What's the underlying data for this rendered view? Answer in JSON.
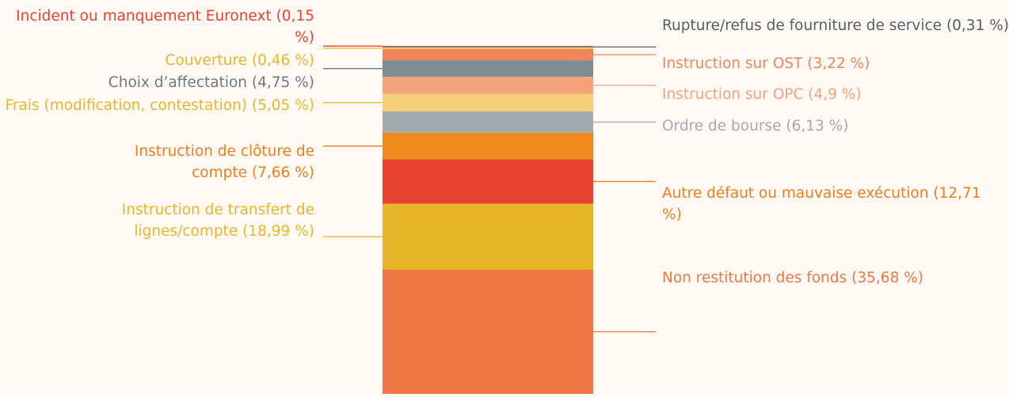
{
  "chart_data": {
    "type": "stacked-bar",
    "series": [
      {
        "name": "Incident ou manquement Euronext",
        "color": "#c9503f",
        "label_color": "#e8432e",
        "values": [
          0.15
        ],
        "value_labels": [
          "(0,15 %)"
        ]
      },
      {
        "name": "Rupture/refus de fourniture de service",
        "color": "#6d7b80",
        "label_color": "#555f63",
        "values": [
          0.31
        ],
        "value_labels": [
          "(0,31 %)"
        ]
      },
      {
        "name": "Couverture",
        "color": "#f2c75a",
        "label_color": "#e7b628",
        "values": [
          0.46
        ],
        "value_labels": [
          "(0,46 %)"
        ]
      },
      {
        "name": "Instruction sur OST",
        "color": "#f0855a",
        "label_color": "#f0855a",
        "values": [
          3.22
        ],
        "value_labels": [
          "(3,22 %)"
        ]
      },
      {
        "name": "Choix d’affectation",
        "color": "#7f8c8f",
        "label_color": "#6d7b80",
        "values": [
          4.75
        ],
        "value_labels": [
          "(4,75 %)"
        ]
      },
      {
        "name": "Instruction sur OPC",
        "color": "#f4a27a",
        "label_color": "#f4a27a",
        "values": [
          4.9
        ],
        "value_labels": [
          "(4,9 %)"
        ]
      },
      {
        "name": "Frais (modification, contestation)",
        "color": "#f5cf7a",
        "label_color": "#e7b628",
        "values": [
          5.05
        ],
        "value_labels": [
          "(5,05 %)"
        ]
      },
      {
        "name": "Ordre de bourse",
        "color": "#a3aaae",
        "label_color": "#a3aaae",
        "values": [
          6.13
        ],
        "value_labels": [
          "(6,13 %)"
        ]
      },
      {
        "name": "Instruction de clôture de compte",
        "color": "#f08a1e",
        "label_color": "#ef7d1a",
        "values": [
          7.66
        ],
        "value_labels": [
          "(7,66 %)"
        ]
      },
      {
        "name": "Autre défaut ou mauvaise exécution",
        "color": "#e8432e",
        "label_color": "#ef7d1a",
        "values": [
          12.71
        ],
        "value_labels": [
          "(12,71 %)"
        ]
      },
      {
        "name": "Instruction de transfert de lignes/compte",
        "color": "#e7b628",
        "label_color": "#e7b628",
        "values": [
          18.99
        ],
        "value_labels": [
          "(18,99 %)"
        ]
      },
      {
        "name": "Non restitution des fonds",
        "color": "#ee7744",
        "label_color": "#ee7744",
        "values": [
          35.68
        ],
        "value_labels": [
          "(35,68 %)"
        ]
      }
    ]
  }
}
